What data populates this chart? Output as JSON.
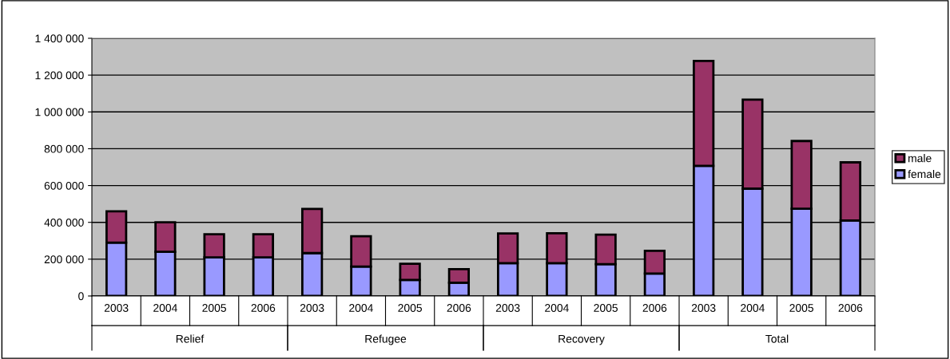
{
  "chart_data": {
    "type": "bar",
    "stacked": true,
    "categories": [
      "2003",
      "2004",
      "2005",
      "2006",
      "2003",
      "2004",
      "2005",
      "2006",
      "2003",
      "2004",
      "2005",
      "2006",
      "2003",
      "2004",
      "2005",
      "2006"
    ],
    "series": [
      {
        "name": "female",
        "color": "#9999ff",
        "values": [
          290000,
          240000,
          210000,
          210000,
          233000,
          160000,
          87000,
          72000,
          178000,
          178000,
          173000,
          122000,
          707000,
          583000,
          474000,
          410000
        ]
      },
      {
        "name": "male",
        "color": "#993366",
        "values": [
          170000,
          160000,
          125000,
          125000,
          240000,
          165000,
          88000,
          74000,
          162000,
          163000,
          160000,
          123000,
          570000,
          484000,
          368000,
          316000
        ]
      }
    ],
    "annotations": [
      "Relief",
      "Refugee",
      "Recovery",
      "Total"
    ],
    "ylim": [
      0,
      1400000
    ],
    "yticks": [
      {
        "value": 0,
        "label": "0"
      },
      {
        "value": 200000,
        "label": "200 000"
      },
      {
        "value": 400000,
        "label": "400 000"
      },
      {
        "value": 600000,
        "label": "600 000"
      },
      {
        "value": 800000,
        "label": "800 000"
      },
      {
        "value": 1000000,
        "label": "1 000 000"
      },
      {
        "value": 1200000,
        "label": "1 200 000"
      },
      {
        "value": 1400000,
        "label": "1 400 000"
      }
    ],
    "grid": "y",
    "legend": "right"
  }
}
